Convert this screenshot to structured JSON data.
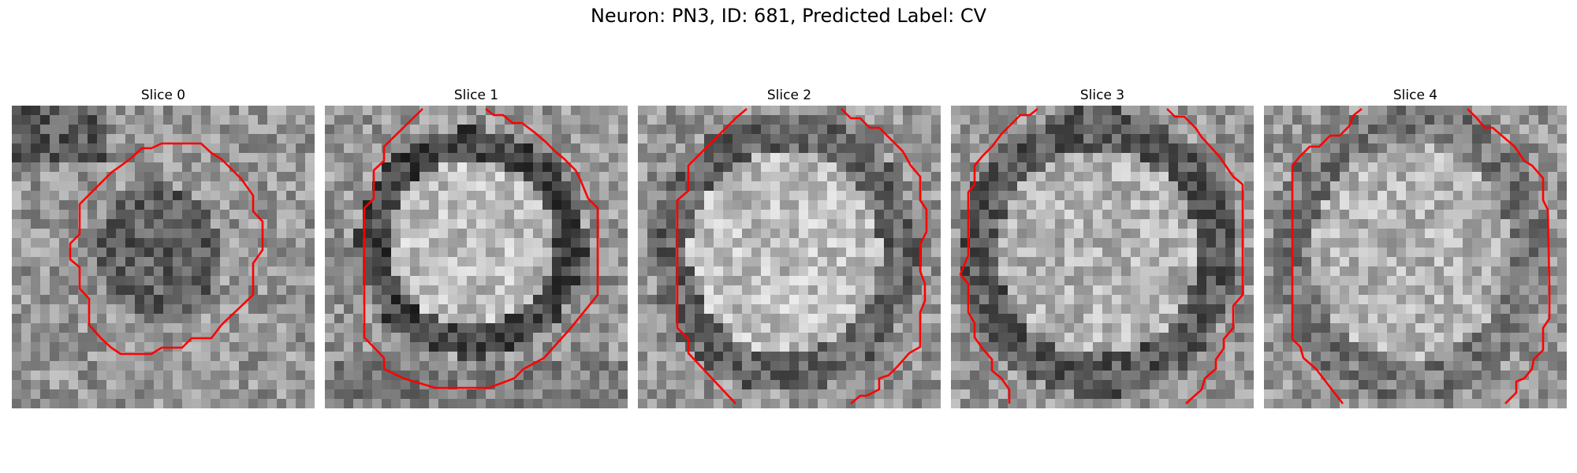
{
  "figure": {
    "suptitle": "Neuron: PN3, ID: 681, Predicted Label: CV",
    "contour_color": "#ff0000",
    "colormap": "grayscale",
    "slices": [
      {
        "title": "Slice 0"
      },
      {
        "title": "Slice 1"
      },
      {
        "title": "Slice 2"
      },
      {
        "title": "Slice 3"
      },
      {
        "title": "Slice 4"
      }
    ]
  }
}
